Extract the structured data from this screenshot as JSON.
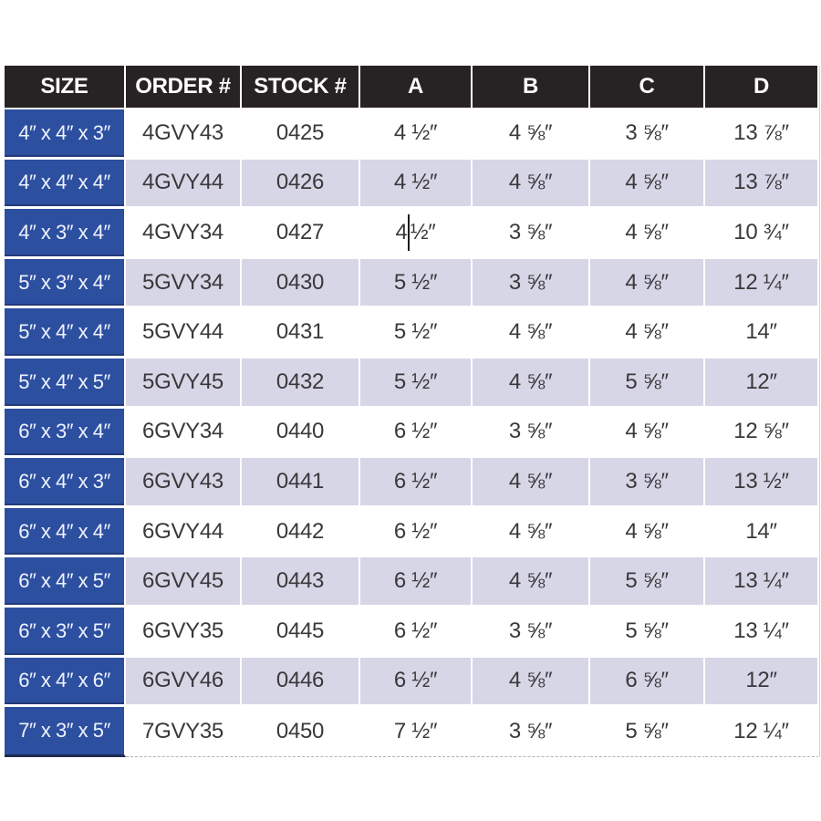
{
  "page": {
    "background": "#ffffff"
  },
  "chart_data": {
    "type": "table",
    "columns": [
      "SIZE",
      "ORDER #",
      "STOCK #",
      "A",
      "B",
      "C",
      "D"
    ],
    "rows": [
      [
        "4″ x 4″ x 3″",
        "4GVY43",
        "0425",
        "4 ½″",
        "4 ⅝″",
        "3 ⅝″",
        "13 ⅞″"
      ],
      [
        "4″ x 4″ x 4″",
        "4GVY44",
        "0426",
        "4 ½″",
        "4 ⅝″",
        "4 ⅝″",
        "13 ⅞″"
      ],
      [
        "4″ x 3″ x 4″",
        "4GVY34",
        "0427",
        "4 ½″",
        "3 ⅝″",
        "4 ⅝″",
        "10 ¾″"
      ],
      [
        "5″ x 3″ x 4″",
        "5GVY34",
        "0430",
        "5 ½″",
        "3 ⅝″",
        "4 ⅝″",
        "12 ¼″"
      ],
      [
        "5″ x 4″ x 4″",
        "5GVY44",
        "0431",
        "5 ½″",
        "4 ⅝″",
        "4 ⅝″",
        "14″"
      ],
      [
        "5″ x 4″ x 5″",
        "5GVY45",
        "0432",
        "5 ½″",
        "4 ⅝″",
        "5 ⅝″",
        "12″"
      ],
      [
        "6″ x 3″ x 4″",
        "6GVY34",
        "0440",
        "6 ½″",
        "3 ⅝″",
        "4 ⅝″",
        "12 ⅝″"
      ],
      [
        "6″ x 4″ x 3″",
        "6GVY43",
        "0441",
        "6 ½″",
        "4 ⅝″",
        "3 ⅝″",
        "13 ½″"
      ],
      [
        "6″ x 4″ x 4″",
        "6GVY44",
        "0442",
        "6 ½″",
        "4 ⅝″",
        "4 ⅝″",
        "14″"
      ],
      [
        "6″ x 4″ x 5″",
        "6GVY45",
        "0443",
        "6 ½″",
        "4 ⅝″",
        "5 ⅝″",
        "13 ¼″"
      ],
      [
        "6″ x 3″ x 5″",
        "6GVY35",
        "0445",
        "6 ½″",
        "3 ⅝″",
        "5 ⅝″",
        "13 ¼″"
      ],
      [
        "6″ x 4″ x 6″",
        "6GVY46",
        "0446",
        "6 ½″",
        "4 ⅝″",
        "6 ⅝″",
        "12″"
      ],
      [
        "7″ x 3″ x 5″",
        "7GVY35",
        "0450",
        "7 ½″",
        "3 ⅝″",
        "5 ⅝″",
        "12 ¼″"
      ]
    ],
    "row_striping": [
      "white",
      "lavender"
    ],
    "legend_position": "none",
    "grid": "white-gaps-between-cells"
  },
  "colors": {
    "header_bg": "#272324",
    "header_text": "#ffffff",
    "size_col_bg": "#2d4fa0",
    "size_col_edge": "#1e2b50",
    "size_col_text": "#eef3fd",
    "row_white": "#ffffff",
    "row_lavender": "#d6d6e6",
    "data_text": "#3a383b",
    "gap": "#ffffff"
  },
  "cursor": {
    "row": 2,
    "col": 3,
    "after_chars": 1
  }
}
